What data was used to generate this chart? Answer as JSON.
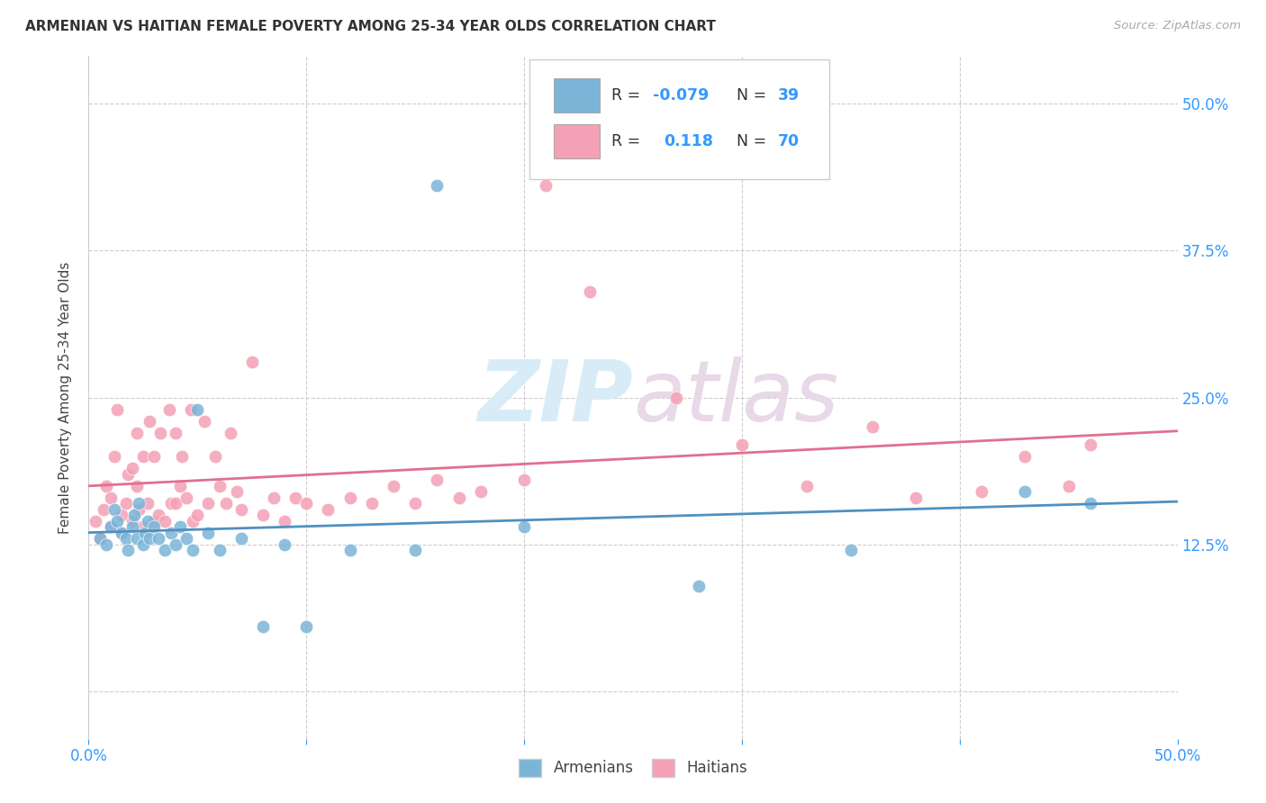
{
  "title": "ARMENIAN VS HAITIAN FEMALE POVERTY AMONG 25-34 YEAR OLDS CORRELATION CHART",
  "source": "Source: ZipAtlas.com",
  "ylabel": "Female Poverty Among 25-34 Year Olds",
  "xlim": [
    0.0,
    0.5
  ],
  "ylim": [
    -0.04,
    0.54
  ],
  "ytick_positions": [
    0.0,
    0.125,
    0.25,
    0.375,
    0.5
  ],
  "ytick_labels": [
    "",
    "12.5%",
    "25.0%",
    "37.5%",
    "50.0%"
  ],
  "armenian_color": "#7ab5d8",
  "haitian_color": "#f4a0b5",
  "armenian_line_color": "#5090c0",
  "haitian_line_color": "#e07090",
  "r_armenian": -0.079,
  "n_armenian": 39,
  "r_haitian": 0.118,
  "n_haitian": 70,
  "background_color": "#ffffff",
  "armenian_x": [
    0.005,
    0.008,
    0.01,
    0.012,
    0.013,
    0.015,
    0.017,
    0.018,
    0.02,
    0.021,
    0.022,
    0.023,
    0.025,
    0.026,
    0.027,
    0.028,
    0.03,
    0.032,
    0.035,
    0.038,
    0.04,
    0.042,
    0.045,
    0.048,
    0.05,
    0.055,
    0.06,
    0.07,
    0.08,
    0.09,
    0.1,
    0.12,
    0.15,
    0.16,
    0.2,
    0.28,
    0.35,
    0.43,
    0.46
  ],
  "armenian_y": [
    0.13,
    0.125,
    0.14,
    0.155,
    0.145,
    0.135,
    0.13,
    0.12,
    0.14,
    0.15,
    0.13,
    0.16,
    0.125,
    0.135,
    0.145,
    0.13,
    0.14,
    0.13,
    0.12,
    0.135,
    0.125,
    0.14,
    0.13,
    0.12,
    0.24,
    0.135,
    0.12,
    0.13,
    0.055,
    0.125,
    0.055,
    0.12,
    0.12,
    0.43,
    0.14,
    0.09,
    0.12,
    0.17,
    0.16
  ],
  "haitian_x": [
    0.003,
    0.005,
    0.007,
    0.008,
    0.01,
    0.01,
    0.012,
    0.013,
    0.015,
    0.015,
    0.017,
    0.018,
    0.02,
    0.02,
    0.022,
    0.022,
    0.023,
    0.025,
    0.025,
    0.027,
    0.028,
    0.03,
    0.03,
    0.032,
    0.033,
    0.035,
    0.037,
    0.038,
    0.04,
    0.04,
    0.042,
    0.043,
    0.045,
    0.047,
    0.048,
    0.05,
    0.053,
    0.055,
    0.058,
    0.06,
    0.063,
    0.065,
    0.068,
    0.07,
    0.075,
    0.08,
    0.085,
    0.09,
    0.095,
    0.1,
    0.11,
    0.12,
    0.13,
    0.14,
    0.15,
    0.16,
    0.17,
    0.18,
    0.2,
    0.21,
    0.23,
    0.27,
    0.3,
    0.33,
    0.36,
    0.38,
    0.41,
    0.43,
    0.45,
    0.46
  ],
  "haitian_y": [
    0.145,
    0.13,
    0.155,
    0.175,
    0.14,
    0.165,
    0.2,
    0.24,
    0.15,
    0.135,
    0.16,
    0.185,
    0.145,
    0.19,
    0.175,
    0.22,
    0.155,
    0.14,
    0.2,
    0.16,
    0.23,
    0.145,
    0.2,
    0.15,
    0.22,
    0.145,
    0.24,
    0.16,
    0.16,
    0.22,
    0.175,
    0.2,
    0.165,
    0.24,
    0.145,
    0.15,
    0.23,
    0.16,
    0.2,
    0.175,
    0.16,
    0.22,
    0.17,
    0.155,
    0.28,
    0.15,
    0.165,
    0.145,
    0.165,
    0.16,
    0.155,
    0.165,
    0.16,
    0.175,
    0.16,
    0.18,
    0.165,
    0.17,
    0.18,
    0.43,
    0.34,
    0.25,
    0.21,
    0.175,
    0.225,
    0.165,
    0.17,
    0.2,
    0.175,
    0.21
  ]
}
